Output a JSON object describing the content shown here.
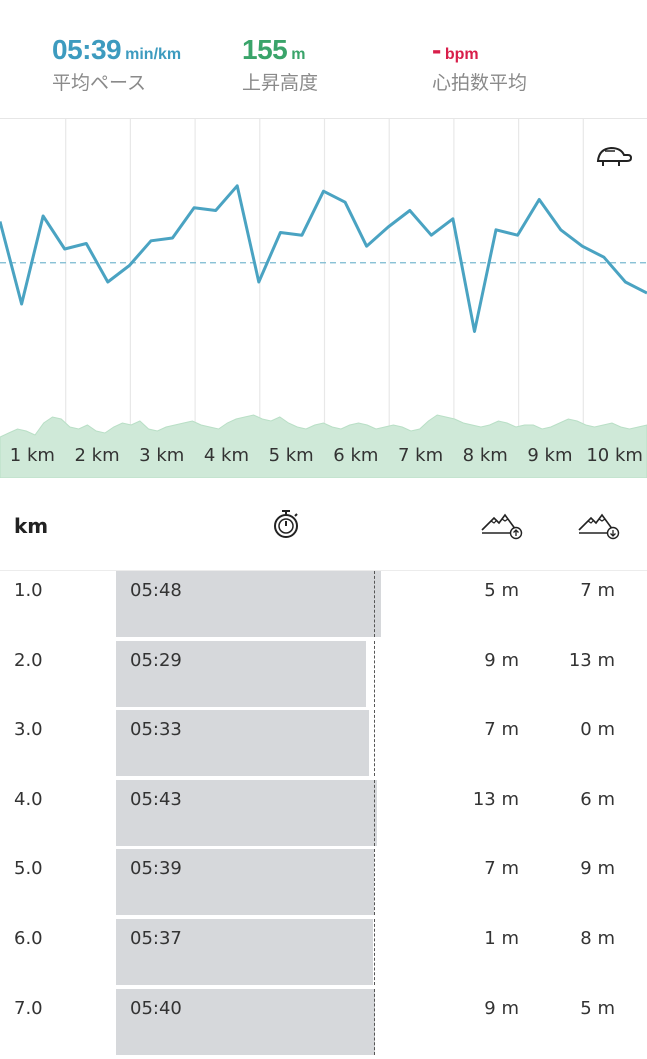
{
  "stats": {
    "pace": {
      "value": "05:39",
      "unit": "min/km",
      "label": "平均ペース",
      "color": "#3d9bbf"
    },
    "elevation": {
      "value": "155",
      "unit": "m",
      "label": "上昇高度",
      "color": "#3aa46a"
    },
    "heart": {
      "value": "-",
      "unit": "bpm",
      "label": "心拍数平均",
      "color": "#d81e4a"
    }
  },
  "chart_data": {
    "type": "line",
    "x_tick_labels": [
      "1 km",
      "2 km",
      "3 km",
      "4 km",
      "5 km",
      "6 km",
      "7 km",
      "8 km",
      "9 km",
      "10 km"
    ],
    "series": [
      {
        "values": [
          5.5,
          5.8,
          5.48,
          5.6,
          5.58,
          5.72,
          5.66,
          5.57,
          5.56,
          5.45,
          5.46,
          5.37,
          5.72,
          5.54,
          5.55,
          5.39,
          5.43,
          5.59,
          5.52,
          5.46,
          5.55,
          5.49,
          5.9,
          5.53,
          5.55,
          5.42,
          5.53,
          5.59,
          5.63,
          5.72,
          5.76
        ],
        "color": "#4aa3c2"
      }
    ],
    "average_pace": 5.65,
    "elevation_color": "#cfe9d8"
  },
  "table": {
    "header_km": "km",
    "icons": {
      "time": "stopwatch-icon",
      "ascent": "mountain-ascent-icon",
      "descent": "mountain-descent-icon"
    },
    "rows": [
      {
        "km": "1.0",
        "time": "05:48",
        "pace": 5.8,
        "up": "5 m",
        "down": "7 m"
      },
      {
        "km": "2.0",
        "time": "05:29",
        "pace": 5.48,
        "up": "9 m",
        "down": "13 m"
      },
      {
        "km": "3.0",
        "time": "05:33",
        "pace": 5.55,
        "up": "7 m",
        "down": "0 m"
      },
      {
        "km": "4.0",
        "time": "05:43",
        "pace": 5.72,
        "up": "13 m",
        "down": "6 m"
      },
      {
        "km": "5.0",
        "time": "05:39",
        "pace": 5.65,
        "up": "7 m",
        "down": "9 m"
      },
      {
        "km": "6.0",
        "time": "05:37",
        "pace": 5.62,
        "up": "1 m",
        "down": "8 m"
      },
      {
        "km": "7.0",
        "time": "05:40",
        "pace": 5.67,
        "up": "9 m",
        "down": "5 m"
      }
    ]
  }
}
